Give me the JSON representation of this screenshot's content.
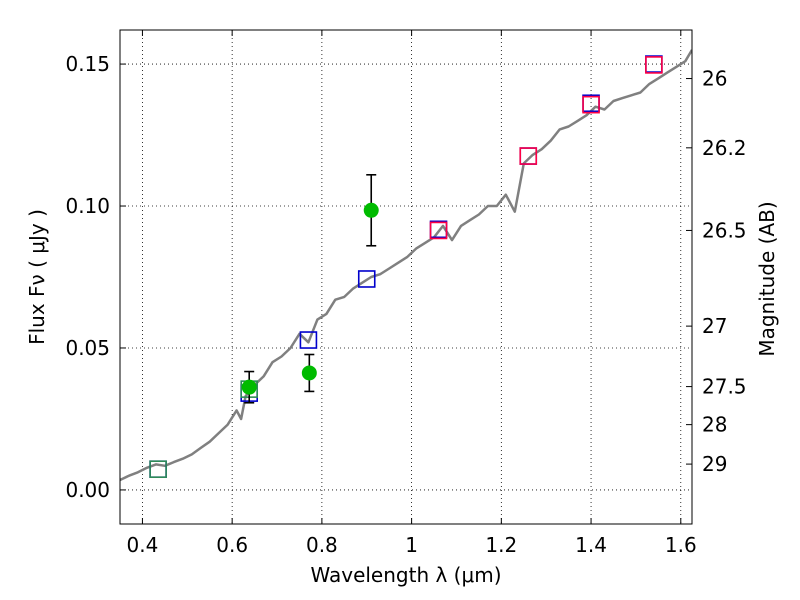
{
  "chart_data": {
    "type": "scatter",
    "xlabel": "Wavelength  λ (μm)",
    "ylabel": "Flux  Fν  ( μJy )",
    "y2label": "Magnitude (AB)",
    "xlim": [
      0.35,
      1.625
    ],
    "ylim": [
      -0.012,
      0.162
    ],
    "x_ticks": [
      0.4,
      0.6,
      0.8,
      1.0,
      1.2,
      1.4,
      1.6
    ],
    "x_tick_labels": [
      "0.4",
      "0.6",
      "0.8",
      "1",
      "1.2",
      "1.4",
      "1.6"
    ],
    "y_ticks": [
      0.0,
      0.05,
      0.1,
      0.15
    ],
    "y_tick_labels": [
      "0.00",
      "0.05",
      "0.10",
      "0.15"
    ],
    "mag_ticks": [
      {
        "label": "26",
        "flux": 0.1449
      },
      {
        "label": "26.2",
        "flux": 0.1205
      },
      {
        "label": "26.5",
        "flux": 0.0914
      },
      {
        "label": "27",
        "flux": 0.0577
      },
      {
        "label": "27.5",
        "flux": 0.0364
      },
      {
        "label": "28",
        "flux": 0.023
      },
      {
        "label": "29",
        "flux": 0.0091
      }
    ],
    "grid": true,
    "series": [
      {
        "kind": "line",
        "color": "#808080",
        "x": [
          0.35,
          0.37,
          0.39,
          0.41,
          0.43,
          0.45,
          0.47,
          0.49,
          0.51,
          0.53,
          0.55,
          0.57,
          0.59,
          0.61,
          0.62,
          0.63,
          0.65,
          0.67,
          0.69,
          0.71,
          0.73,
          0.75,
          0.77,
          0.79,
          0.81,
          0.83,
          0.85,
          0.87,
          0.89,
          0.91,
          0.93,
          0.95,
          0.97,
          0.99,
          1.01,
          1.03,
          1.05,
          1.07,
          1.09,
          1.11,
          1.13,
          1.15,
          1.17,
          1.19,
          1.21,
          1.23,
          1.25,
          1.27,
          1.29,
          1.31,
          1.33,
          1.35,
          1.37,
          1.39,
          1.41,
          1.43,
          1.45,
          1.47,
          1.49,
          1.51,
          1.53,
          1.55,
          1.57,
          1.59,
          1.61,
          1.625
        ],
        "y": [
          0.0035,
          0.005,
          0.0062,
          0.0078,
          0.009,
          0.0085,
          0.0098,
          0.011,
          0.0125,
          0.0148,
          0.017,
          0.02,
          0.023,
          0.028,
          0.025,
          0.033,
          0.037,
          0.04,
          0.045,
          0.047,
          0.05,
          0.055,
          0.052,
          0.06,
          0.062,
          0.067,
          0.068,
          0.071,
          0.073,
          0.075,
          0.076,
          0.078,
          0.08,
          0.082,
          0.085,
          0.087,
          0.089,
          0.093,
          0.088,
          0.093,
          0.095,
          0.097,
          0.1,
          0.1,
          0.104,
          0.098,
          0.115,
          0.118,
          0.12,
          0.123,
          0.127,
          0.128,
          0.13,
          0.132,
          0.135,
          0.134,
          0.137,
          0.138,
          0.139,
          0.14,
          0.143,
          0.145,
          0.147,
          0.149,
          0.151,
          0.155
        ]
      },
      {
        "kind": "markers",
        "marker": "square",
        "edgecolor": "#0000cc",
        "points": [
          {
            "x": 0.435,
            "y": 0.0073
          },
          {
            "x": 0.638,
            "y": 0.0341
          },
          {
            "x": 0.77,
            "y": 0.0528
          },
          {
            "x": 0.9,
            "y": 0.0743
          },
          {
            "x": 1.06,
            "y": 0.0918
          },
          {
            "x": 1.26,
            "y": 0.1176
          },
          {
            "x": 1.4,
            "y": 0.1362
          },
          {
            "x": 1.54,
            "y": 0.15
          }
        ]
      },
      {
        "kind": "markers",
        "marker": "square",
        "edgecolor": "#2e8b57",
        "points": [
          {
            "x": 0.435,
            "y": 0.0073
          },
          {
            "x": 0.638,
            "y": 0.0355
          }
        ]
      },
      {
        "kind": "markers",
        "marker": "square",
        "edgecolor": "#ff0044",
        "points": [
          {
            "x": 1.06,
            "y": 0.0914
          },
          {
            "x": 1.26,
            "y": 0.1176
          },
          {
            "x": 1.4,
            "y": 0.1357
          },
          {
            "x": 1.54,
            "y": 0.1497
          }
        ]
      },
      {
        "kind": "errorbar",
        "marker": "circle",
        "color": "#00bb00",
        "points": [
          {
            "x": 0.638,
            "y": 0.0362,
            "err": 0.0055
          },
          {
            "x": 0.772,
            "y": 0.0412,
            "err": 0.0065
          },
          {
            "x": 0.91,
            "y": 0.0985,
            "err": 0.0125
          }
        ]
      }
    ]
  }
}
